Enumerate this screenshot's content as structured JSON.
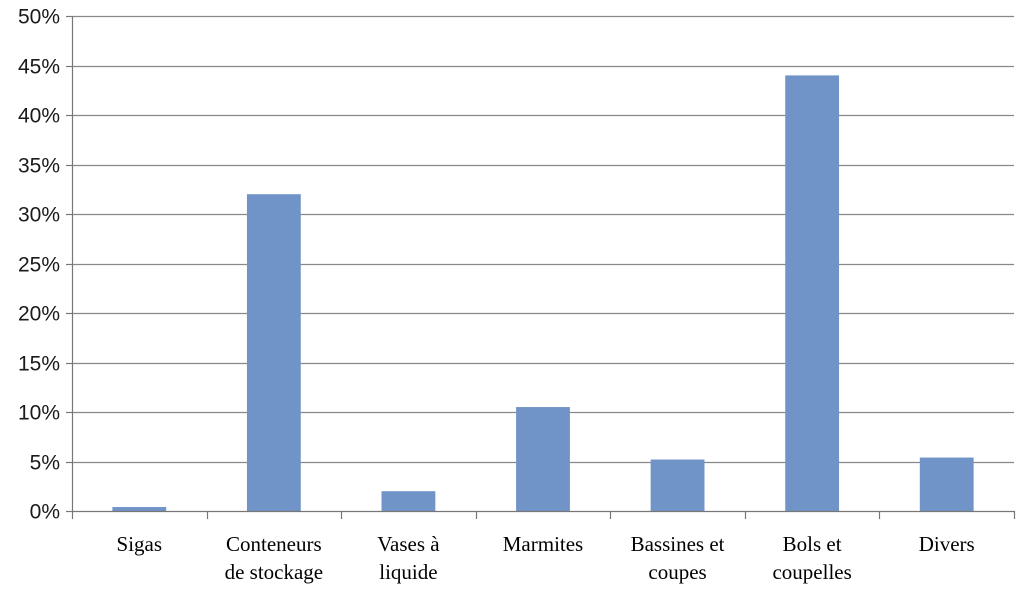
{
  "chart_data": {
    "type": "bar",
    "categories": [
      [
        "Sigas"
      ],
      [
        "Conteneurs",
        "de stockage"
      ],
      [
        "Vases à",
        "liquide"
      ],
      [
        "Marmites"
      ],
      [
        "Bassines et",
        "coupes"
      ],
      [
        "Bols et",
        "coupelles"
      ],
      [
        "Divers"
      ]
    ],
    "values": [
      0.4,
      32,
      2,
      10.5,
      5.2,
      44,
      5.4
    ],
    "ylim": [
      0,
      50
    ],
    "ytick_step": 5,
    "ytick_labels": [
      "0%",
      "5%",
      "10%",
      "15%",
      "20%",
      "25%",
      "30%",
      "35%",
      "40%",
      "45%",
      "50%"
    ],
    "title": "",
    "xlabel": "",
    "ylabel": "",
    "grid": true,
    "legend": "none",
    "colors": {
      "bar": "#7094c8",
      "grid": "#888888",
      "axis": "#777777"
    }
  }
}
